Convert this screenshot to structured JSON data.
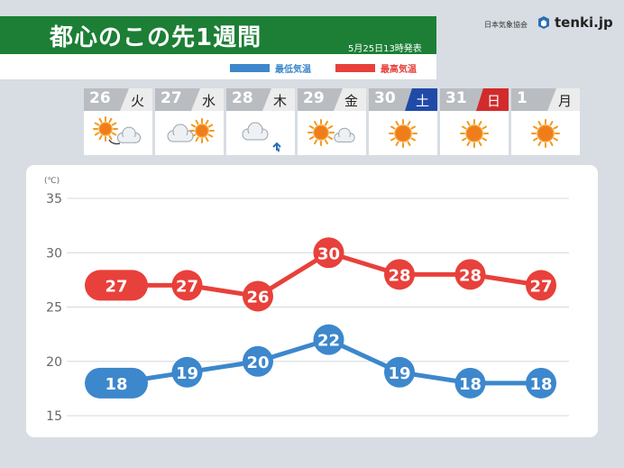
{
  "header": {
    "title": "都心のこの先1週間",
    "issued": "5月25日13時発表",
    "legend_low": "最低気温",
    "legend_high": "最高気温",
    "org": "日本気象協会",
    "brand": "tenki.jp"
  },
  "days": [
    {
      "date": "26",
      "weekday": "火",
      "weather": "sunny-then-cloudy"
    },
    {
      "date": "27",
      "weekday": "水",
      "weather": "cloudy-sometimes-sunny"
    },
    {
      "date": "28",
      "weekday": "木",
      "weather": "cloudy-then-rain"
    },
    {
      "date": "29",
      "weekday": "金",
      "weather": "sunny-sometimes-cloudy"
    },
    {
      "date": "30",
      "weekday": "土",
      "weather": "sunny",
      "weekday_color": "#1f4aa8"
    },
    {
      "date": "31",
      "weekday": "日",
      "weather": "sunny",
      "weekday_color": "#d22b2b"
    },
    {
      "date": "1",
      "weekday": "月",
      "weather": "sunny"
    }
  ],
  "colors": {
    "high": "#e8403a",
    "low": "#3d87cc",
    "header_green": "#1c7f35"
  },
  "chart_data": {
    "type": "line",
    "unit": "(℃)",
    "categories": [
      "26",
      "27",
      "28",
      "29",
      "30",
      "31",
      "1"
    ],
    "series": [
      {
        "name": "最高気温",
        "values": [
          27,
          27,
          26,
          30,
          28,
          28,
          27
        ]
      },
      {
        "name": "最低気温",
        "values": [
          18,
          19,
          20,
          22,
          19,
          18,
          18
        ]
      }
    ],
    "yticks": [
      15,
      20,
      25,
      30,
      35
    ],
    "ylim": [
      15,
      35
    ],
    "grid": true
  }
}
